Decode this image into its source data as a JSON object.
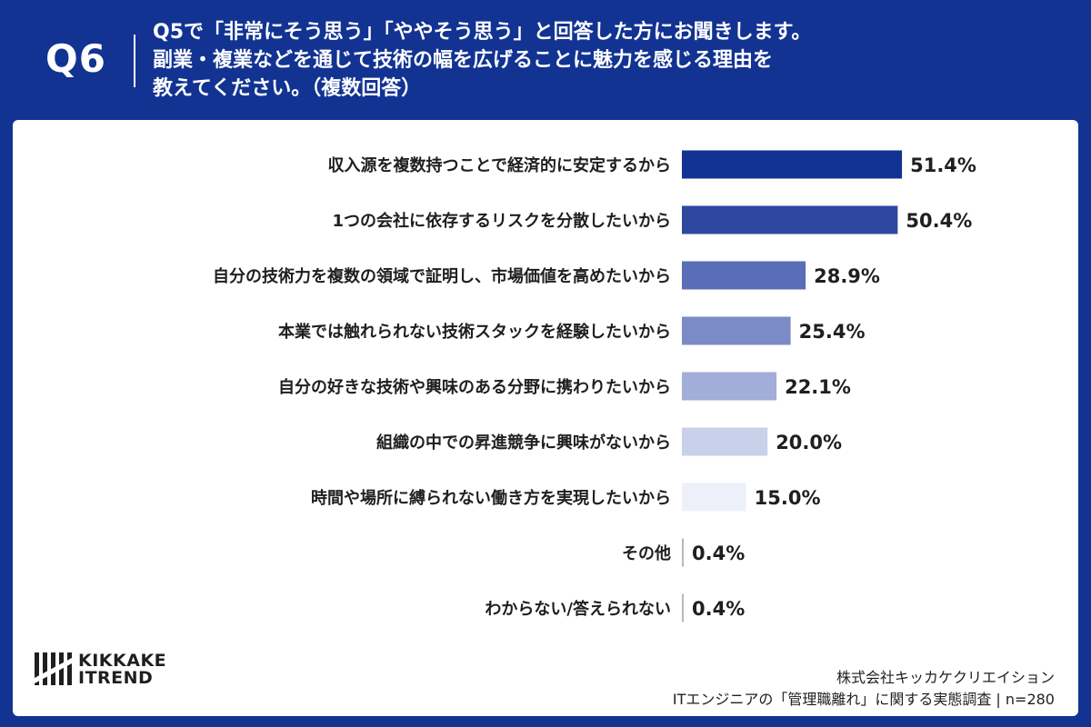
{
  "header": {
    "question_number": "Q6",
    "question_lines": [
      "Q5で「非常にそう思う」「ややそう思う」と回答した方にお聞きします。",
      "副業・複業などを通じて技術の幅を広げることに魅力を感じる理由を",
      "教えてください。（複数回答）"
    ]
  },
  "chart_data": {
    "type": "bar",
    "orientation": "horizontal",
    "unit": "%",
    "categories": [
      "収入源を複数持つことで経済的に安定するから",
      "1つの会社に依存するリスクを分散したいから",
      "自分の技術力を複数の領域で証明し、市場価値を高めたいから",
      "本業では触れられない技術スタックを経験したいから",
      "自分の好きな技術や興味のある分野に携わりたいから",
      "組織の中での昇進競争に興味がないから",
      "時間や場所に縛られない働き方を実現したいから",
      "その他",
      "わからない/答えられない"
    ],
    "values": [
      51.4,
      50.4,
      28.9,
      25.4,
      22.1,
      20.0,
      15.0,
      0.4,
      0.4
    ],
    "value_labels": [
      "51.4%",
      "50.4%",
      "28.9%",
      "25.4%",
      "22.1%",
      "20.0%",
      "15.0%",
      "0.4%",
      "0.4%"
    ],
    "bar_colors": [
      "#123392",
      "#2e48a0",
      "#5a6eb8",
      "#7a8bc6",
      "#a2aed8",
      "#c9d0ea",
      "#eef0f9",
      "#b8b8b8",
      "#b8b8b8"
    ],
    "xlim": [
      0,
      100
    ],
    "grid": false,
    "legend": "none"
  },
  "footer": {
    "logo_line1": "KIKKAKE",
    "logo_line2": "ITREND",
    "company": "株式会社キッカケクリエイション",
    "survey": "ITエンジニアの「管理職離れ」に関する実態調査 | n=280"
  },
  "colors": {
    "brand": "#123392",
    "text": "#1f1f1f"
  }
}
